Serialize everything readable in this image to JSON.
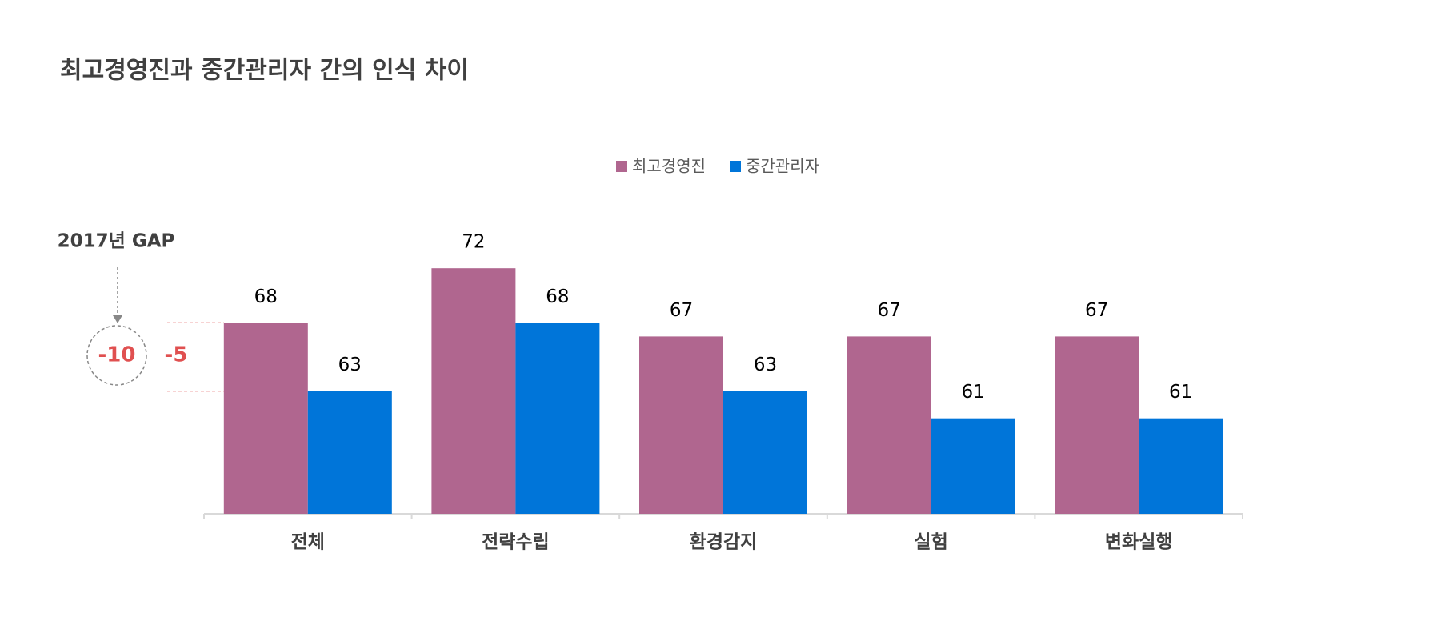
{
  "chart_data": {
    "type": "bar",
    "title": "최고경영진과 중간관리자 간의 인식 차이",
    "categories": [
      "전체",
      "전략수립",
      "환경감지",
      "실험",
      "변화실행"
    ],
    "series": [
      {
        "name": "최고경영진",
        "color": "#b0668f",
        "values": [
          68,
          72,
          67,
          67,
          67
        ]
      },
      {
        "name": "중간관리자",
        "color": "#0075d9",
        "values": [
          63,
          68,
          63,
          61,
          61
        ]
      }
    ],
    "ylim": [
      54,
      76
    ],
    "legend": "top",
    "annotations": {
      "gap_title": "2017년 GAP",
      "previous_gap": "-10",
      "current_gap": "-5"
    }
  }
}
